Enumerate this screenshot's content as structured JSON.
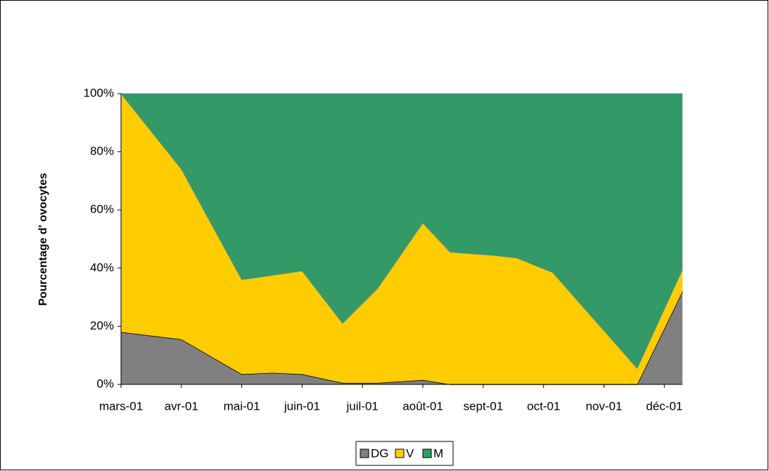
{
  "chart_data": {
    "type": "stacked_area",
    "y_label": "Pourcentage d' ovocytes",
    "x": [
      3.0,
      4.0,
      5.0,
      5.5,
      6.0,
      6.67,
      7.25,
      8.0,
      8.45,
      9.1,
      9.55,
      10.15,
      11.55,
      12.3
    ],
    "xlim": [
      3.0,
      12.3
    ],
    "xticks": [
      {
        "value": 3,
        "label": "mars-01"
      },
      {
        "value": 4,
        "label": "avr-01"
      },
      {
        "value": 5,
        "label": "mai-01"
      },
      {
        "value": 6,
        "label": "juin-01"
      },
      {
        "value": 7,
        "label": "juil-01"
      },
      {
        "value": 8,
        "label": "août-01"
      },
      {
        "value": 9,
        "label": "sept-01"
      },
      {
        "value": 10,
        "label": "oct-01"
      },
      {
        "value": 11,
        "label": "nov-01"
      },
      {
        "value": 12,
        "label": "déc-01"
      }
    ],
    "ylim": [
      0,
      100
    ],
    "yticks": [
      {
        "value": 0,
        "label": "0%"
      },
      {
        "value": 20,
        "label": "20%"
      },
      {
        "value": 40,
        "label": "40%"
      },
      {
        "value": 60,
        "label": "60%"
      },
      {
        "value": 80,
        "label": "80%"
      },
      {
        "value": 100,
        "label": "100%"
      }
    ],
    "series": [
      {
        "name": "DG",
        "color": "#808080",
        "values": [
          18,
          15.5,
          3.5,
          4,
          3.5,
          0.5,
          0.5,
          1.5,
          0,
          0,
          0,
          0,
          0,
          32
        ]
      },
      {
        "name": "V",
        "color": "#ffcc00",
        "values": [
          82,
          58.5,
          32.5,
          33.5,
          35.5,
          20.5,
          32.5,
          54,
          45.5,
          44.5,
          43.5,
          38.5,
          5.5,
          7.5
        ]
      },
      {
        "name": "M",
        "color": "#339966",
        "values": [
          0,
          26,
          64,
          62.5,
          61,
          79,
          67,
          44.5,
          54.5,
          55.5,
          56.5,
          61.5,
          94.5,
          60.5
        ]
      }
    ],
    "legend": "bottom"
  }
}
